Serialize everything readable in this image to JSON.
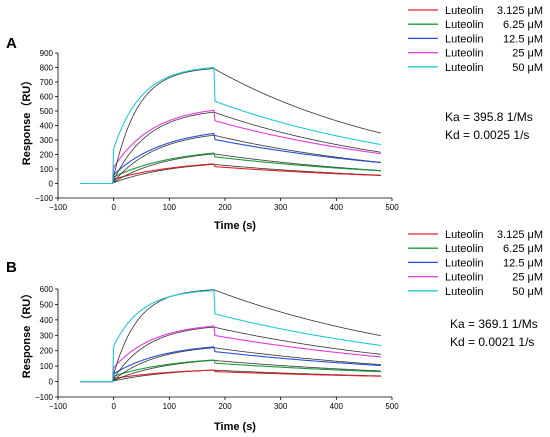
{
  "chart_data": [
    {
      "panel": "A",
      "type": "line",
      "xlabel": "Time (s)",
      "ylabel": "Response（RU）",
      "xlim": [
        -100,
        500
      ],
      "ylim": [
        -100,
        900
      ],
      "xticks": [
        -100,
        0,
        100,
        200,
        300,
        400,
        500
      ],
      "yticks": [
        -100,
        0,
        100,
        200,
        300,
        400,
        500,
        600,
        700,
        800,
        900
      ],
      "x_tick_labels": [
        "−100",
        "0",
        "100",
        "200",
        "300",
        "400",
        "500"
      ],
      "y_tick_labels": [
        "−100",
        "0",
        "100",
        "200",
        "300",
        "400",
        "500",
        "600",
        "700",
        "800",
        "900"
      ],
      "legend_position": "right",
      "kinetics": {
        "ka_label": "Ka = 395.8  1/Ms",
        "kd_label": "Kd = 0.0025  1/s"
      },
      "series": [
        {
          "name": "Luteolin",
          "conc": "3.125 μM",
          "color": "#e8202a",
          "t_start": -60,
          "t_inject": 0,
          "t_end_assoc": 180,
          "t_end": 480,
          "jump": 30,
          "rmax": 135,
          "kobs": 0.008,
          "kd": 0.0025,
          "off_drop": 18,
          "fit_color": "#333333"
        },
        {
          "name": "Luteolin",
          "conc": "6.25 μM",
          "color": "#1a9e3a",
          "t_start": -60,
          "t_inject": 0,
          "t_end_assoc": 180,
          "t_end": 480,
          "jump": 45,
          "rmax": 210,
          "kobs": 0.009,
          "kd": 0.0025,
          "off_drop": 25,
          "fit_color": "#333333"
        },
        {
          "name": "Luteolin",
          "conc": "12.5 μM",
          "color": "#2b4fd6",
          "t_start": -60,
          "t_inject": 0,
          "t_end_assoc": 180,
          "t_end": 480,
          "jump": 60,
          "rmax": 345,
          "kobs": 0.011,
          "kd": 0.0025,
          "off_drop": 40,
          "fit_color": "#333333"
        },
        {
          "name": "Luteolin",
          "conc": "25 μM",
          "color": "#e33be0",
          "t_start": -60,
          "t_inject": 0,
          "t_end_assoc": 180,
          "t_end": 480,
          "jump": 110,
          "rmax": 505,
          "kobs": 0.014,
          "kd": 0.0025,
          "off_drop": 70,
          "fit_color": "#333333"
        },
        {
          "name": "Luteolin",
          "conc": "50 μM",
          "color": "#22c9d6",
          "t_start": -60,
          "t_inject": 0,
          "t_end_assoc": 180,
          "t_end": 480,
          "jump": 240,
          "rmax": 800,
          "kobs": 0.02,
          "kd": 0.0025,
          "off_drop": 230,
          "fit_color": "#333333"
        }
      ]
    },
    {
      "panel": "B",
      "type": "line",
      "xlabel": "Time (s)",
      "ylabel": "Response（RU）",
      "xlim": [
        -100,
        500
      ],
      "ylim": [
        -100,
        600
      ],
      "xticks": [
        -100,
        0,
        100,
        200,
        300,
        400,
        500
      ],
      "yticks": [
        -100,
        0,
        100,
        200,
        300,
        400,
        500,
        600
      ],
      "x_tick_labels": [
        "−100",
        "0",
        "100",
        "200",
        "300",
        "400",
        "500"
      ],
      "y_tick_labels": [
        "−100",
        "0",
        "100",
        "200",
        "300",
        "400",
        "500",
        "600"
      ],
      "legend_position": "right",
      "kinetics": {
        "ka_label": "Ka = 369.1  1/Ms",
        "kd_label": "Kd = 0.0021  1/s"
      },
      "series": [
        {
          "name": "Luteolin",
          "conc": "3.125 μM",
          "color": "#e8202a",
          "t_start": -60,
          "t_inject": 0,
          "t_end_assoc": 180,
          "t_end": 480,
          "jump": 20,
          "rmax": 75,
          "kobs": 0.008,
          "kd": 0.0021,
          "off_drop": 10,
          "fit_color": "#333333"
        },
        {
          "name": "Luteolin",
          "conc": "6.25 μM",
          "color": "#1a9e3a",
          "t_start": -60,
          "t_inject": 0,
          "t_end_assoc": 180,
          "t_end": 480,
          "jump": 35,
          "rmax": 140,
          "kobs": 0.009,
          "kd": 0.0021,
          "off_drop": 20,
          "fit_color": "#333333"
        },
        {
          "name": "Luteolin",
          "conc": "12.5 μM",
          "color": "#2b4fd6",
          "t_start": -60,
          "t_inject": 0,
          "t_end_assoc": 180,
          "t_end": 480,
          "jump": 50,
          "rmax": 225,
          "kobs": 0.011,
          "kd": 0.0021,
          "off_drop": 30,
          "fit_color": "#333333"
        },
        {
          "name": "Luteolin",
          "conc": "25 μM",
          "color": "#e33be0",
          "t_start": -60,
          "t_inject": 0,
          "t_end_assoc": 180,
          "t_end": 480,
          "jump": 90,
          "rmax": 360,
          "kobs": 0.014,
          "kd": 0.0021,
          "off_drop": 60,
          "fit_color": "#333333"
        },
        {
          "name": "Luteolin",
          "conc": "50 μM",
          "color": "#22c9d6",
          "t_start": -60,
          "t_inject": 0,
          "t_end_assoc": 180,
          "t_end": 480,
          "jump": 230,
          "rmax": 590,
          "kobs": 0.02,
          "kd": 0.0021,
          "off_drop": 150,
          "fit_color": "#333333"
        }
      ]
    }
  ]
}
